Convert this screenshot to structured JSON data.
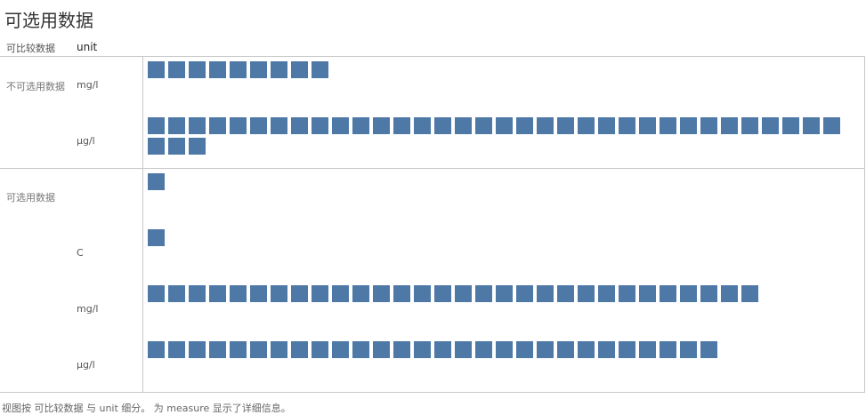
{
  "page": {
    "title": "可选用数据",
    "footer": "视图按 可比较数据 与 unit 细分。 为 measure 显示了详细信息。"
  },
  "header": {
    "dimension_label": "可比较数据",
    "unit_label": "unit"
  },
  "chart_data": {
    "type": "table",
    "mark": "square",
    "color": "#4e79a7",
    "groups": [
      {
        "name": "不可选用数据",
        "rows": [
          {
            "unit": "mg/l",
            "count": 9
          },
          {
            "unit": "µg/l",
            "count": 37
          }
        ]
      },
      {
        "name": "可选用数据",
        "rows": [
          {
            "unit": "",
            "count": 1
          },
          {
            "unit": "C",
            "count": 1
          },
          {
            "unit": "mg/l",
            "count": 30
          },
          {
            "unit": "µg/l",
            "count": 28
          }
        ]
      }
    ]
  }
}
